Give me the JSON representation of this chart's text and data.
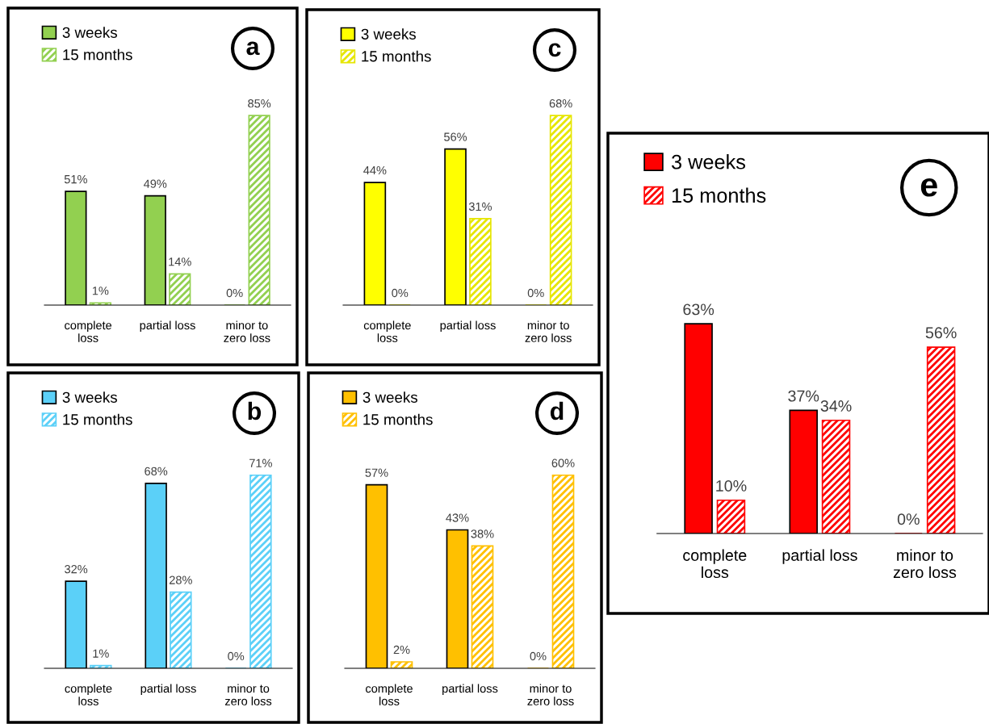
{
  "chart_data": [
    {
      "type": "bar",
      "categories": [
        "complete\nloss",
        "partial loss",
        "minor to\nzero loss"
      ],
      "legend": "top left",
      "tick_labels": "x",
      "grid": false,
      "annotations": [
        "a"
      ],
      "series": [
        {
          "name": "3 weeks",
          "color": "#92d050",
          "values": [
            51,
            49,
            0
          ],
          "value_labels": [
            "51%",
            "49%",
            "0%"
          ]
        },
        {
          "name": "15 months",
          "color": "#92d050",
          "values": [
            1,
            14,
            85
          ],
          "value_labels": [
            "1%",
            "14%",
            "85%"
          ]
        }
      ]
    },
    {
      "type": "bar",
      "categories": [
        "complete\nloss",
        "partial loss",
        "minor to\nzero loss"
      ],
      "legend": "top left",
      "tick_labels": "x",
      "grid": false,
      "annotations": [
        "b"
      ],
      "series": [
        {
          "name": "3 weeks",
          "color": "#5bd0f8",
          "values": [
            32,
            68,
            0
          ],
          "value_labels": [
            "32%",
            "68%",
            "0%"
          ]
        },
        {
          "name": "15 months",
          "color": "#5bd0f8",
          "values": [
            1,
            28,
            71
          ],
          "value_labels": [
            "1%",
            "28%",
            "71%"
          ]
        }
      ]
    },
    {
      "type": "bar",
      "categories": [
        "complete\nloss",
        "partial loss",
        "minor to\nzero loss"
      ],
      "legend": "top left",
      "tick_labels": "x",
      "grid": false,
      "annotations": [
        "c"
      ],
      "series": [
        {
          "name": "3 weeks",
          "color": "#ffff00",
          "values": [
            44,
            56,
            0
          ],
          "value_labels": [
            "44%",
            "56%",
            "0%"
          ]
        },
        {
          "name": "15 months",
          "color": "#e6e600",
          "values": [
            0,
            31,
            68
          ],
          "value_labels": [
            "0%",
            "31%",
            "68%"
          ]
        }
      ]
    },
    {
      "type": "bar",
      "categories": [
        "complete\nloss",
        "partial loss",
        "minor to\nzero loss"
      ],
      "legend": "top left",
      "tick_labels": "x",
      "grid": false,
      "annotations": [
        "d"
      ],
      "series": [
        {
          "name": "3 weeks",
          "color": "#ffc000",
          "values": [
            57,
            43,
            0
          ],
          "value_labels": [
            "57%",
            "43%",
            "0%"
          ]
        },
        {
          "name": "15 months",
          "color": "#ffc000",
          "values": [
            2,
            38,
            60
          ],
          "value_labels": [
            "2%",
            "38%",
            "60%"
          ]
        }
      ]
    },
    {
      "type": "bar",
      "categories": [
        "complete\nloss",
        "partial loss",
        "minor to\nzero loss"
      ],
      "legend": "top left",
      "tick_labels": "x",
      "grid": false,
      "annotations": [
        "e"
      ],
      "series": [
        {
          "name": "3 weeks",
          "color": "#ff0000",
          "values": [
            63,
            37,
            0
          ],
          "value_labels": [
            "63%",
            "37%",
            "0%"
          ]
        },
        {
          "name": "15 months",
          "color": "#ff0000",
          "values": [
            10,
            34,
            56
          ],
          "value_labels": [
            "10%",
            "34%",
            "56%"
          ]
        }
      ]
    }
  ]
}
